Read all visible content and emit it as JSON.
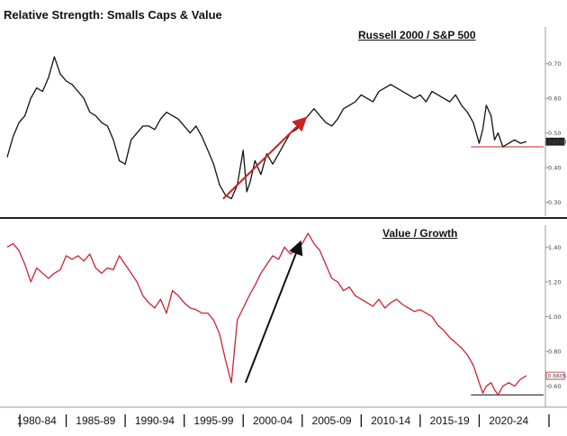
{
  "title": "Relative Strength: Smalls Caps & Value",
  "chart_data": [
    {
      "type": "line",
      "title": "Russell 2000 / S&P 500",
      "ylim": [
        0.27,
        0.78
      ],
      "yticks": [
        "0.70",
        "0.60",
        "0.50",
        "0.40",
        "0.30"
      ],
      "ytick_values": [
        0.7,
        0.6,
        0.5,
        0.4,
        0.3
      ],
      "last_value_label": "0.4748",
      "last_value": 0.475,
      "support_level": 0.46,
      "line_color": "#111111",
      "arrow_color": "#cc2222",
      "grid": false,
      "x": [
        1980.0,
        1980.5,
        1981.0,
        1981.5,
        1982.0,
        1982.5,
        1983.0,
        1983.5,
        1984.0,
        1984.5,
        1985.0,
        1985.5,
        1986.0,
        1986.5,
        1987.0,
        1987.5,
        1988.0,
        1988.5,
        1989.0,
        1989.5,
        1990.0,
        1990.5,
        1991.0,
        1991.5,
        1992.0,
        1992.5,
        1993.0,
        1993.5,
        1994.0,
        1994.5,
        1995.0,
        1995.5,
        1996.0,
        1996.5,
        1997.0,
        1997.5,
        1998.0,
        1998.5,
        1999.0,
        1999.5,
        2000.0,
        2000.3,
        2000.6,
        2001.0,
        2001.5,
        2002.0,
        2002.5,
        2003.0,
        2003.5,
        2004.0,
        2004.5,
        2005.0,
        2005.5,
        2006.0,
        2006.5,
        2007.0,
        2007.5,
        2008.0,
        2008.5,
        2009.0,
        2009.5,
        2010.0,
        2010.5,
        2011.0,
        2011.5,
        2012.0,
        2012.5,
        2013.0,
        2013.5,
        2014.0,
        2014.5,
        2015.0,
        2015.5,
        2016.0,
        2016.5,
        2017.0,
        2017.5,
        2018.0,
        2018.5,
        2019.0,
        2019.5,
        2020.0,
        2020.3,
        2020.6,
        2021.0,
        2021.3,
        2021.6,
        2022.0,
        2022.5,
        2023.0,
        2023.5,
        2024.0
      ],
      "values": [
        0.43,
        0.49,
        0.53,
        0.55,
        0.6,
        0.63,
        0.62,
        0.66,
        0.72,
        0.67,
        0.65,
        0.64,
        0.62,
        0.6,
        0.56,
        0.55,
        0.53,
        0.52,
        0.48,
        0.42,
        0.41,
        0.48,
        0.5,
        0.52,
        0.52,
        0.51,
        0.54,
        0.56,
        0.55,
        0.54,
        0.52,
        0.5,
        0.52,
        0.49,
        0.45,
        0.41,
        0.35,
        0.32,
        0.31,
        0.35,
        0.45,
        0.33,
        0.36,
        0.42,
        0.38,
        0.44,
        0.41,
        0.44,
        0.47,
        0.5,
        0.51,
        0.53,
        0.55,
        0.57,
        0.55,
        0.53,
        0.52,
        0.54,
        0.57,
        0.58,
        0.59,
        0.61,
        0.6,
        0.59,
        0.62,
        0.63,
        0.64,
        0.63,
        0.62,
        0.61,
        0.6,
        0.61,
        0.59,
        0.62,
        0.61,
        0.6,
        0.59,
        0.61,
        0.58,
        0.56,
        0.53,
        0.47,
        0.51,
        0.58,
        0.55,
        0.48,
        0.5,
        0.46,
        0.47,
        0.48,
        0.47,
        0.475
      ]
    },
    {
      "type": "line",
      "title": "Value / Growth",
      "ylim": [
        0.5,
        1.5
      ],
      "yticks": [
        "1.40",
        "1.20",
        "1.00",
        "0.80",
        "0.60"
      ],
      "ytick_values": [
        1.4,
        1.2,
        1.0,
        0.8,
        0.6
      ],
      "last_value_label": "0.6605",
      "last_value": 0.66,
      "support_level": 0.55,
      "line_color": "#cc2233",
      "arrow_color": "#111111",
      "grid": false,
      "x": [
        1980.0,
        1980.5,
        1981.0,
        1981.5,
        1982.0,
        1982.5,
        1983.0,
        1983.5,
        1984.0,
        1984.5,
        1985.0,
        1985.5,
        1986.0,
        1986.5,
        1987.0,
        1987.5,
        1988.0,
        1988.5,
        1989.0,
        1989.5,
        1990.0,
        1990.5,
        1991.0,
        1991.5,
        1992.0,
        1992.5,
        1993.0,
        1993.5,
        1994.0,
        1994.5,
        1995.0,
        1995.5,
        1996.0,
        1996.5,
        1997.0,
        1997.5,
        1998.0,
        1998.5,
        1999.0,
        1999.5,
        2000.0,
        2000.5,
        2001.0,
        2001.5,
        2002.0,
        2002.5,
        2003.0,
        2003.5,
        2004.0,
        2004.5,
        2005.0,
        2005.5,
        2006.0,
        2006.5,
        2007.0,
        2007.5,
        2008.0,
        2008.5,
        2009.0,
        2009.5,
        2010.0,
        2010.5,
        2011.0,
        2011.5,
        2012.0,
        2012.5,
        2013.0,
        2013.5,
        2014.0,
        2014.5,
        2015.0,
        2015.5,
        2016.0,
        2016.5,
        2017.0,
        2017.5,
        2018.0,
        2018.5,
        2019.0,
        2019.5,
        2020.0,
        2020.3,
        2020.6,
        2021.0,
        2021.3,
        2021.6,
        2022.0,
        2022.5,
        2023.0,
        2023.5,
        2024.0
      ],
      "values": [
        1.4,
        1.42,
        1.38,
        1.3,
        1.2,
        1.28,
        1.25,
        1.22,
        1.25,
        1.27,
        1.35,
        1.33,
        1.35,
        1.32,
        1.36,
        1.28,
        1.25,
        1.28,
        1.27,
        1.35,
        1.3,
        1.25,
        1.2,
        1.12,
        1.08,
        1.05,
        1.1,
        1.02,
        1.15,
        1.12,
        1.08,
        1.05,
        1.04,
        1.02,
        1.02,
        0.98,
        0.9,
        0.75,
        0.62,
        0.98,
        1.05,
        1.12,
        1.18,
        1.25,
        1.3,
        1.35,
        1.33,
        1.4,
        1.36,
        1.38,
        1.42,
        1.48,
        1.42,
        1.38,
        1.3,
        1.22,
        1.2,
        1.15,
        1.17,
        1.12,
        1.1,
        1.08,
        1.06,
        1.1,
        1.05,
        1.08,
        1.1,
        1.07,
        1.05,
        1.03,
        1.04,
        1.02,
        1.0,
        0.95,
        0.92,
        0.88,
        0.85,
        0.82,
        0.78,
        0.72,
        0.62,
        0.56,
        0.6,
        0.62,
        0.58,
        0.55,
        0.6,
        0.62,
        0.6,
        0.64,
        0.66
      ]
    }
  ],
  "x_axis": {
    "labels": [
      "1980-84",
      "1985-89",
      "1990-94",
      "1995-99",
      "2000-04",
      "2005-09",
      "2010-14",
      "2015-19",
      "2020-24"
    ],
    "range": [
      1980,
      2025
    ]
  }
}
